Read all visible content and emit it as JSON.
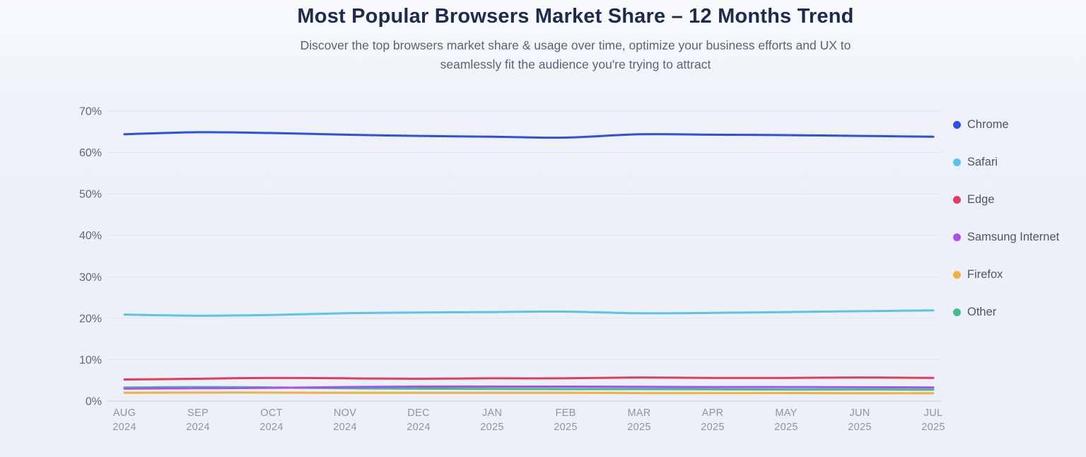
{
  "header": {
    "title": "Most Popular Browsers Market Share – 12 Months Trend",
    "subtitle_line1": "Discover the top browsers market share & usage over time, optimize your business efforts and UX to",
    "subtitle_line2": "seamlessly fit the audience you're trying to attract"
  },
  "chart_data": {
    "type": "line",
    "title": "Most Popular Browsers Market Share – 12 Months Trend",
    "categories": [
      "AUG 2024",
      "SEP 2024",
      "OCT 2024",
      "NOV 2024",
      "DEC 2024",
      "JAN 2025",
      "FEB 2025",
      "MAR 2025",
      "APR 2025",
      "MAY 2025",
      "JUN 2025",
      "JUL 2025"
    ],
    "series": [
      {
        "name": "Chrome",
        "color": "#2F4FE4",
        "values": [
          64.4,
          64.9,
          64.7,
          64.3,
          64.0,
          63.8,
          63.6,
          64.4,
          64.3,
          64.2,
          64.0,
          63.8
        ]
      },
      {
        "name": "Safari",
        "color": "#58C4ED",
        "values": [
          20.9,
          20.6,
          20.8,
          21.2,
          21.4,
          21.5,
          21.6,
          21.2,
          21.3,
          21.5,
          21.7,
          21.9
        ]
      },
      {
        "name": "Edge",
        "color": "#E63A5E",
        "values": [
          5.2,
          5.4,
          5.6,
          5.5,
          5.4,
          5.5,
          5.5,
          5.7,
          5.6,
          5.6,
          5.7,
          5.6
        ]
      },
      {
        "name": "Samsung Internet",
        "color": "#AC4FF1",
        "values": [
          3.0,
          3.1,
          3.2,
          3.4,
          3.5,
          3.5,
          3.5,
          3.45,
          3.4,
          3.4,
          3.35,
          3.3
        ]
      },
      {
        "name": "Firefox",
        "color": "#F0B13E",
        "values": [
          2.0,
          2.05,
          2.05,
          2.0,
          2.0,
          2.0,
          2.0,
          1.95,
          1.95,
          1.95,
          1.9,
          1.9
        ]
      },
      {
        "name": "Other",
        "color": "#3FBE8B",
        "values": [
          3.3,
          3.4,
          3.3,
          3.1,
          3.0,
          2.95,
          2.9,
          2.9,
          2.85,
          2.8,
          2.8,
          2.75
        ]
      }
    ],
    "ylabel": "",
    "xlabel": "",
    "ylim": [
      0,
      70
    ],
    "ytick_step": 10,
    "ytick_suffix": "%",
    "grid": "horizontal",
    "legend_position": "right",
    "colors": {
      "grid_line": "#e4e7ef",
      "zero_line": "#d6dbe7",
      "y_tick_text": "#5f6876",
      "x_tick_text": "#8c95a5"
    }
  }
}
